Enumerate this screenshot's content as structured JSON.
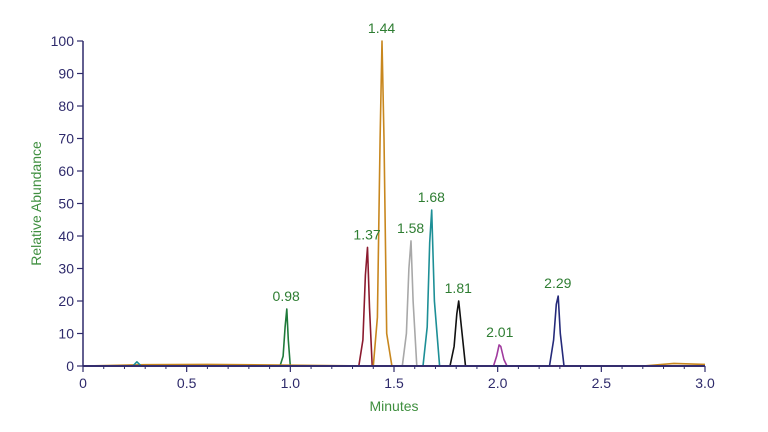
{
  "chart_data": {
    "type": "line",
    "xlabel": "Minutes",
    "ylabel": "Relative Abundance",
    "xlim": [
      0,
      3.0
    ],
    "ylim": [
      0,
      100
    ],
    "x_ticks": [
      "0",
      "0.5",
      "1.0",
      "1.5",
      "2.0",
      "2.5",
      "3.0"
    ],
    "x_tick_values": [
      0,
      0.5,
      1.0,
      1.5,
      2.0,
      2.5,
      3.0
    ],
    "y_ticks": [
      "0",
      "10",
      "20",
      "30",
      "40",
      "50",
      "60",
      "70",
      "80",
      "90",
      "100"
    ],
    "y_tick_values": [
      0,
      10,
      20,
      30,
      40,
      50,
      60,
      70,
      80,
      90,
      100
    ],
    "grid": false,
    "legend": "none",
    "colors": {
      "axis": "#2e2a6b",
      "axis_title": "#3f8f3f",
      "peak_label": "#2e7d32"
    },
    "series": [
      {
        "label": "0.98",
        "color": "#1f7a3a",
        "x": [
          0.0,
          0.95,
          0.965,
          0.975,
          0.983,
          0.99,
          1.0,
          3.0
        ],
        "y": [
          0,
          0,
          3,
          12,
          17.5,
          8,
          0,
          0
        ]
      },
      {
        "label": "1.37",
        "color": "#8b1a2e",
        "x": [
          0.0,
          1.33,
          1.35,
          1.362,
          1.372,
          1.382,
          1.395,
          3.0
        ],
        "y": [
          0,
          0,
          8,
          28,
          36.5,
          18,
          0,
          0
        ]
      },
      {
        "label": "1.44",
        "color": "#c8871e",
        "x": [
          0.0,
          0.3,
          0.6,
          1.4,
          1.42,
          1.433,
          1.442,
          1.452,
          1.465,
          1.49,
          2.7,
          2.85,
          3.0
        ],
        "y": [
          0,
          0.4,
          0.5,
          0,
          15,
          70,
          100,
          70,
          10,
          0,
          0,
          0.8,
          0.5
        ]
      },
      {
        "label": "1.58",
        "color": "#a8a8a8",
        "x": [
          0.0,
          1.54,
          1.56,
          1.572,
          1.582,
          1.592,
          1.61,
          3.0
        ],
        "y": [
          0,
          0,
          10,
          30,
          38.5,
          20,
          0,
          0
        ]
      },
      {
        "label": "1.68",
        "color": "#1d8f96",
        "x": [
          0.0,
          0.24,
          0.26,
          0.28,
          1.64,
          1.66,
          1.672,
          1.682,
          1.695,
          1.72,
          3.0
        ],
        "y": [
          0,
          0,
          1.3,
          0,
          0,
          12,
          38,
          48,
          20,
          0,
          0
        ]
      },
      {
        "label": "1.81",
        "color": "#111111",
        "x": [
          0.0,
          1.77,
          1.79,
          1.803,
          1.812,
          1.825,
          1.845,
          3.0
        ],
        "y": [
          0,
          0,
          6,
          16,
          20,
          12,
          0,
          0
        ]
      },
      {
        "label": "2.01",
        "color": "#a03a9e",
        "x": [
          0.0,
          1.98,
          1.995,
          2.007,
          2.015,
          2.03,
          2.045,
          3.0
        ],
        "y": [
          0,
          0,
          3,
          6.5,
          6,
          2,
          0,
          0
        ]
      },
      {
        "label": "2.29",
        "color": "#252a7a",
        "x": [
          0.0,
          2.25,
          2.27,
          2.283,
          2.292,
          2.302,
          2.32,
          3.0
        ],
        "y": [
          0,
          0,
          8,
          19,
          21.5,
          10,
          0,
          0
        ]
      }
    ],
    "annotations": [
      {
        "text": "0.98",
        "x": 0.98,
        "y": 17.5
      },
      {
        "text": "1.37",
        "x": 1.37,
        "y": 36.5
      },
      {
        "text": "1.44",
        "x": 1.44,
        "y": 100
      },
      {
        "text": "1.58",
        "x": 1.58,
        "y": 38.5
      },
      {
        "text": "1.68",
        "x": 1.68,
        "y": 48
      },
      {
        "text": "1.81",
        "x": 1.81,
        "y": 20
      },
      {
        "text": "2.01",
        "x": 2.01,
        "y": 6.5
      },
      {
        "text": "2.29",
        "x": 2.29,
        "y": 21.5
      }
    ]
  }
}
